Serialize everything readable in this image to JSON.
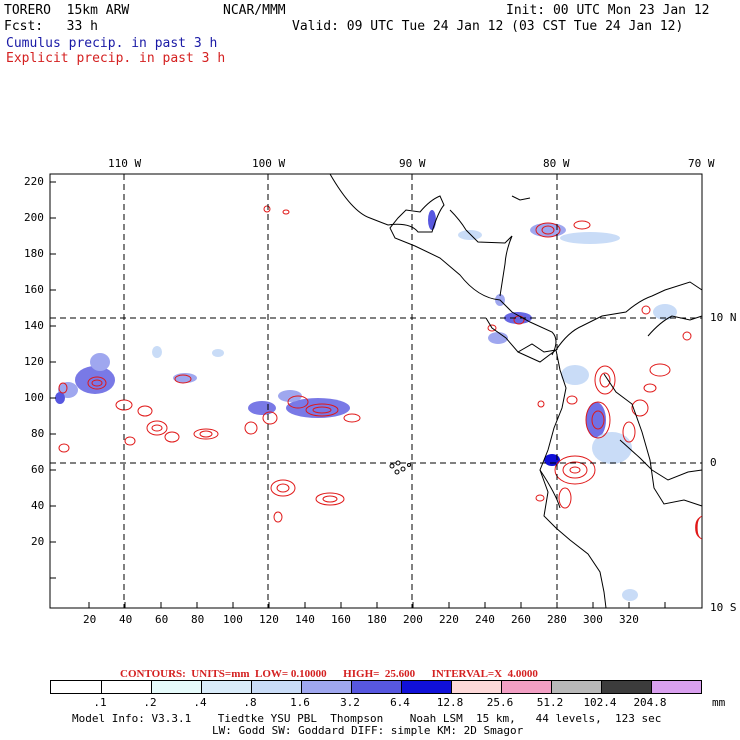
{
  "header": {
    "model": "TORERO  15km ARW",
    "org": "NCAR/MMM",
    "init": "Init: 00 UTC Mon 23 Jan 12",
    "fcst": "Fcst:   33 h",
    "valid": "Valid: 09 UTC Tue 24 Jan 12 (03 CST Tue 24 Jan 12)",
    "legend_cumulus": "Cumulus precip. in past 3 h",
    "legend_explicit": "Explicit precip. in past 3 h"
  },
  "map": {
    "top_lon_labels": [
      "110 W",
      "100 W",
      "90 W",
      "80 W",
      "70 W"
    ],
    "right_lat_labels": [
      "10 N",
      "0",
      "10 S"
    ],
    "left_y_ticks": [
      "220",
      "200",
      "180",
      "160",
      "140",
      "120",
      "100",
      "80",
      "60",
      "40",
      "20"
    ],
    "bottom_x_ticks": [
      "20",
      "40",
      "60",
      "80",
      "100",
      "120",
      "140",
      "160",
      "180",
      "200",
      "220",
      "240",
      "260",
      "280",
      "300",
      "320"
    ]
  },
  "contours": {
    "label": "CONTOURS:  UNITS=mm  LOW= 0.10000      HIGH=  25.600      INTERVAL=X  4.0000"
  },
  "colorbar": {
    "labels": [
      ".1",
      ".2",
      ".4",
      ".8",
      "1.6",
      "3.2",
      "6.4",
      "12.8",
      "25.6",
      "51.2",
      "102.4",
      "204.8"
    ],
    "units": "mm",
    "colors": [
      "#ffffff",
      "#ffffff",
      "#e6fbfb",
      "#d9ecfa",
      "#c9dcf7",
      "#9fa7ef",
      "#5757e0",
      "#1010d8",
      "#fdd8d8",
      "#f29fc4",
      "#b8b8b8",
      "#3c3c3c",
      "#d9a0ef"
    ]
  },
  "footer": {
    "line1": "Model Info: V3.3.1    Tiedtke YSU PBL  Thompson    Noah LSM  15 km,   44 levels,  123 sec",
    "line2": "LW: Godd SW: Goddard DIFF: simple KM: 2D Smagor"
  }
}
